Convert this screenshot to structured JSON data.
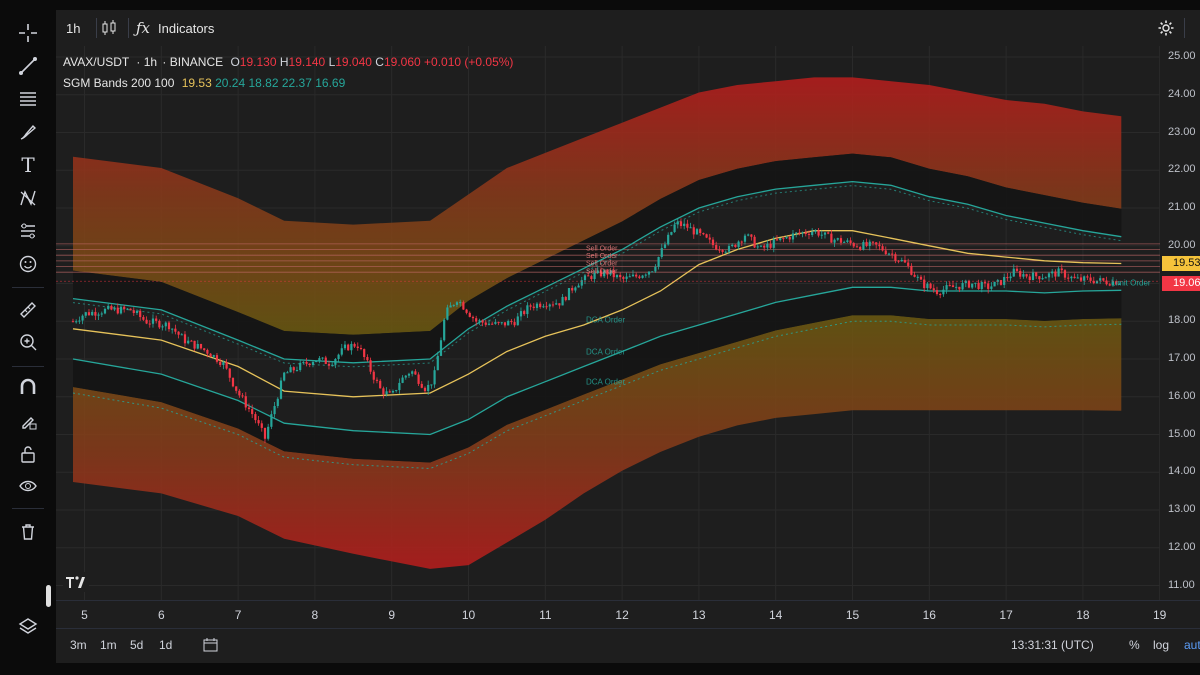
{
  "toolbar": {
    "interval": "1h",
    "indicators_label": "Indicators"
  },
  "left_tools": [
    {
      "name": "crosshair-icon"
    },
    {
      "name": "trend-line-icon"
    },
    {
      "name": "fib-retracement-icon"
    },
    {
      "name": "brush-icon"
    },
    {
      "name": "text-icon"
    },
    {
      "name": "pattern-icon"
    },
    {
      "name": "forecast-icon"
    },
    {
      "name": "emoji-icon"
    },
    {
      "name": "ruler-icon"
    },
    {
      "name": "zoom-in-icon"
    },
    {
      "name": "magnet-icon"
    },
    {
      "name": "lock-drawings-icon"
    },
    {
      "name": "unlock-icon"
    },
    {
      "name": "eye-icon"
    },
    {
      "name": "trash-icon"
    },
    {
      "name": "layers-icon"
    }
  ],
  "legend": {
    "symbol": "AVAX/USDT",
    "timeframe": "1h",
    "exchange": "BINANCE",
    "open_label": "O",
    "open": "19.130",
    "high_label": "H",
    "high": "19.140",
    "low_label": "L",
    "low": "19.040",
    "close_label": "C",
    "close": "19.060",
    "change": "+0.010 (+0.05%)",
    "indicator_name": "SGM Bands 200 100",
    "indicator_values": [
      "19.53",
      "20.24",
      "18.82",
      "22.37",
      "16.69"
    ],
    "indicator_colors": [
      "#e6c25a",
      "#26a69a",
      "#26a69a",
      "#26a69a",
      "#26a69a"
    ]
  },
  "price_scale": {
    "ticks": [
      "25.00",
      "24.00",
      "23.00",
      "22.00",
      "21.00",
      "20.00",
      "19.00",
      "18.00",
      "17.00",
      "16.00",
      "15.00",
      "14.00",
      "13.00",
      "12.00",
      "11.00"
    ],
    "badge_ma": "19.53",
    "badge_last": "19.06"
  },
  "time_axis": {
    "ticks": [
      "5",
      "6",
      "7",
      "8",
      "9",
      "10",
      "11",
      "12",
      "13",
      "14",
      "15",
      "16",
      "17",
      "18",
      "19"
    ]
  },
  "bottom_bar": {
    "ranges": [
      "3m",
      "1m",
      "5d",
      "1d"
    ],
    "clock": "13:31:31 (UTC)",
    "percent": "%",
    "log": "log",
    "auto": "auto"
  },
  "orders": {
    "dca": [
      "DCA Order",
      "DCA Order",
      "DCA Order"
    ],
    "sell": [
      "Sell Order",
      "Sell Order",
      "Sell Order",
      "Sell Order"
    ],
    "limit": "Limit Order"
  },
  "colors": {
    "background": "#1e1e1e",
    "up": "#26a69a",
    "down": "#f23645",
    "ma": "#e6c25a",
    "band": "#26a69a",
    "badge_ma": "#f5c33b",
    "badge_last": "#f23645"
  },
  "chart_data": {
    "type": "candlestick",
    "symbol": "AVAX/USDT",
    "interval": "1h",
    "x_ticks": [
      "5",
      "6",
      "7",
      "8",
      "9",
      "10",
      "11",
      "12",
      "13",
      "14",
      "15",
      "16",
      "17",
      "18",
      "19"
    ],
    "ylim": [
      10.6,
      25.3
    ],
    "close_path": [
      {
        "day": 4.85,
        "price": 18.0
      },
      {
        "day": 5.0,
        "price": 18.2
      },
      {
        "day": 5.3,
        "price": 18.3
      },
      {
        "day": 5.6,
        "price": 18.3
      },
      {
        "day": 5.8,
        "price": 18.0
      },
      {
        "day": 6.1,
        "price": 17.9
      },
      {
        "day": 6.3,
        "price": 17.5
      },
      {
        "day": 6.6,
        "price": 17.2
      },
      {
        "day": 6.8,
        "price": 16.9
      },
      {
        "day": 7.0,
        "price": 16.1
      },
      {
        "day": 7.2,
        "price": 15.5
      },
      {
        "day": 7.35,
        "price": 14.9
      },
      {
        "day": 7.45,
        "price": 15.6
      },
      {
        "day": 7.6,
        "price": 16.6
      },
      {
        "day": 7.8,
        "price": 16.8
      },
      {
        "day": 8.0,
        "price": 17.0
      },
      {
        "day": 8.2,
        "price": 16.9
      },
      {
        "day": 8.4,
        "price": 17.3
      },
      {
        "day": 8.55,
        "price": 17.4
      },
      {
        "day": 8.7,
        "price": 16.8
      },
      {
        "day": 8.85,
        "price": 16.2
      },
      {
        "day": 9.0,
        "price": 16.0
      },
      {
        "day": 9.1,
        "price": 16.4
      },
      {
        "day": 9.25,
        "price": 16.7
      },
      {
        "day": 9.45,
        "price": 16.2
      },
      {
        "day": 9.55,
        "price": 16.5
      },
      {
        "day": 9.7,
        "price": 18.2
      },
      {
        "day": 9.85,
        "price": 18.6
      },
      {
        "day": 10.1,
        "price": 18.0
      },
      {
        "day": 10.4,
        "price": 17.9
      },
      {
        "day": 10.6,
        "price": 18.0
      },
      {
        "day": 10.8,
        "price": 18.4
      },
      {
        "day": 11.0,
        "price": 18.5
      },
      {
        "day": 11.2,
        "price": 18.5
      },
      {
        "day": 11.4,
        "price": 19.0
      },
      {
        "day": 11.6,
        "price": 19.2
      },
      {
        "day": 11.8,
        "price": 19.3
      },
      {
        "day": 12.0,
        "price": 19.1
      },
      {
        "day": 12.2,
        "price": 19.2
      },
      {
        "day": 12.4,
        "price": 19.4
      },
      {
        "day": 12.55,
        "price": 20.0
      },
      {
        "day": 12.7,
        "price": 20.6
      },
      {
        "day": 12.85,
        "price": 20.5
      },
      {
        "day": 13.0,
        "price": 20.3
      },
      {
        "day": 13.2,
        "price": 20.0
      },
      {
        "day": 13.4,
        "price": 19.9
      },
      {
        "day": 13.6,
        "price": 20.3
      },
      {
        "day": 13.8,
        "price": 19.9
      },
      {
        "day": 14.0,
        "price": 20.1
      },
      {
        "day": 14.25,
        "price": 20.3
      },
      {
        "day": 14.5,
        "price": 20.4
      },
      {
        "day": 14.7,
        "price": 20.2
      },
      {
        "day": 14.9,
        "price": 20.1
      },
      {
        "day": 15.1,
        "price": 20.0
      },
      {
        "day": 15.3,
        "price": 20.0
      },
      {
        "day": 15.5,
        "price": 19.8
      },
      {
        "day": 15.7,
        "price": 19.5
      },
      {
        "day": 15.9,
        "price": 19.0
      },
      {
        "day": 16.1,
        "price": 18.8
      },
      {
        "day": 16.3,
        "price": 18.9
      },
      {
        "day": 16.55,
        "price": 19.0
      },
      {
        "day": 16.75,
        "price": 18.9
      },
      {
        "day": 16.9,
        "price": 19.0
      },
      {
        "day": 17.1,
        "price": 19.3
      },
      {
        "day": 17.3,
        "price": 19.2
      },
      {
        "day": 17.5,
        "price": 19.2
      },
      {
        "day": 17.7,
        "price": 19.3
      },
      {
        "day": 17.9,
        "price": 19.1
      },
      {
        "day": 18.1,
        "price": 19.1
      },
      {
        "day": 18.3,
        "price": 19.05
      },
      {
        "day": 18.5,
        "price": 19.06
      }
    ],
    "ma": {
      "name": "SGM Bands 200 100",
      "points": [
        [
          4.85,
          17.8
        ],
        [
          6.0,
          17.5
        ],
        [
          7.0,
          16.8
        ],
        [
          7.6,
          16.15
        ],
        [
          8.5,
          16.0
        ],
        [
          9.5,
          16.1
        ],
        [
          10.0,
          16.6
        ],
        [
          10.5,
          17.2
        ],
        [
          11.0,
          17.6
        ],
        [
          11.5,
          17.9
        ],
        [
          12.0,
          18.3
        ],
        [
          12.5,
          18.8
        ],
        [
          13.0,
          19.5
        ],
        [
          13.5,
          19.9
        ],
        [
          14.0,
          20.2
        ],
        [
          14.5,
          20.4
        ],
        [
          15.0,
          20.4
        ],
        [
          15.5,
          20.2
        ],
        [
          16.0,
          20.0
        ],
        [
          16.5,
          19.8
        ],
        [
          17.0,
          19.7
        ],
        [
          17.5,
          19.6
        ],
        [
          18.0,
          19.55
        ],
        [
          18.5,
          19.53
        ]
      ]
    },
    "band_upper": {
      "points": [
        [
          4.85,
          18.6
        ],
        [
          6.0,
          18.3
        ],
        [
          7.0,
          17.5
        ],
        [
          7.6,
          17.0
        ],
        [
          8.5,
          16.9
        ],
        [
          9.5,
          17.0
        ],
        [
          10.0,
          17.8
        ],
        [
          10.5,
          18.4
        ],
        [
          11.0,
          18.9
        ],
        [
          11.5,
          19.4
        ],
        [
          12.0,
          19.9
        ],
        [
          12.5,
          20.5
        ],
        [
          13.0,
          21.0
        ],
        [
          13.5,
          21.3
        ],
        [
          14.0,
          21.5
        ],
        [
          14.5,
          21.6
        ],
        [
          15.0,
          21.7
        ],
        [
          15.5,
          21.6
        ],
        [
          16.0,
          21.3
        ],
        [
          16.5,
          21.1
        ],
        [
          17.0,
          20.8
        ],
        [
          17.5,
          20.6
        ],
        [
          18.0,
          20.4
        ],
        [
          18.5,
          20.24
        ]
      ]
    },
    "band_lower": {
      "points": [
        [
          4.85,
          17.0
        ],
        [
          6.0,
          16.6
        ],
        [
          7.0,
          15.9
        ],
        [
          7.6,
          15.3
        ],
        [
          8.5,
          15.1
        ],
        [
          9.5,
          15.0
        ],
        [
          10.0,
          15.4
        ],
        [
          10.5,
          16.0
        ],
        [
          11.0,
          16.4
        ],
        [
          11.5,
          16.8
        ],
        [
          12.0,
          17.2
        ],
        [
          12.5,
          17.6
        ],
        [
          13.0,
          17.9
        ],
        [
          13.5,
          18.2
        ],
        [
          14.0,
          18.5
        ],
        [
          14.5,
          18.7
        ],
        [
          15.0,
          18.9
        ],
        [
          15.5,
          18.9
        ],
        [
          16.0,
          18.8
        ],
        [
          16.5,
          18.8
        ],
        [
          17.0,
          18.8
        ],
        [
          17.5,
          18.75
        ],
        [
          18.0,
          18.8
        ],
        [
          18.5,
          18.82
        ]
      ]
    },
    "outer_upper": {
      "points": [
        [
          4.85,
          21.3
        ],
        [
          6.0,
          21.0
        ],
        [
          7.0,
          20.2
        ],
        [
          7.6,
          19.6
        ],
        [
          8.5,
          19.5
        ],
        [
          9.5,
          19.6
        ],
        [
          10.0,
          20.3
        ],
        [
          10.5,
          21.0
        ],
        [
          11.0,
          21.4
        ],
        [
          11.5,
          21.8
        ],
        [
          12.0,
          22.2
        ],
        [
          12.5,
          22.6
        ],
        [
          13.0,
          23.0
        ],
        [
          13.5,
          23.2
        ],
        [
          14.0,
          23.3
        ],
        [
          14.5,
          23.4
        ],
        [
          15.0,
          23.4
        ],
        [
          15.5,
          23.3
        ],
        [
          16.0,
          23.2
        ],
        [
          16.5,
          23.0
        ],
        [
          17.0,
          22.8
        ],
        [
          17.5,
          22.7
        ],
        [
          18.0,
          22.5
        ],
        [
          18.5,
          22.37
        ]
      ]
    },
    "outer_lower": {
      "points": [
        [
          4.85,
          14.8
        ],
        [
          6.0,
          14.5
        ],
        [
          7.0,
          13.9
        ],
        [
          7.6,
          13.3
        ],
        [
          8.5,
          12.9
        ],
        [
          9.5,
          12.5
        ],
        [
          10.0,
          12.6
        ],
        [
          10.5,
          13.2
        ],
        [
          11.0,
          13.8
        ],
        [
          11.5,
          14.5
        ],
        [
          12.0,
          15.1
        ],
        [
          12.5,
          15.6
        ],
        [
          13.0,
          16.0
        ],
        [
          13.5,
          16.3
        ],
        [
          14.0,
          16.5
        ],
        [
          14.5,
          16.6
        ],
        [
          15.0,
          16.7
        ],
        [
          15.5,
          16.7
        ],
        [
          16.0,
          16.7
        ],
        [
          16.5,
          16.7
        ],
        [
          17.0,
          16.7
        ],
        [
          17.5,
          16.7
        ],
        [
          18.0,
          16.7
        ],
        [
          18.5,
          16.69
        ]
      ]
    },
    "order_lines": [
      20.05,
      19.9,
      19.75,
      19.6,
      19.45,
      19.3
    ],
    "dca_labels_at": [
      18.05,
      17.2,
      16.4
    ],
    "sell_labels_at": [
      19.95,
      19.75,
      19.55,
      19.35
    ],
    "last_price": 19.06
  }
}
